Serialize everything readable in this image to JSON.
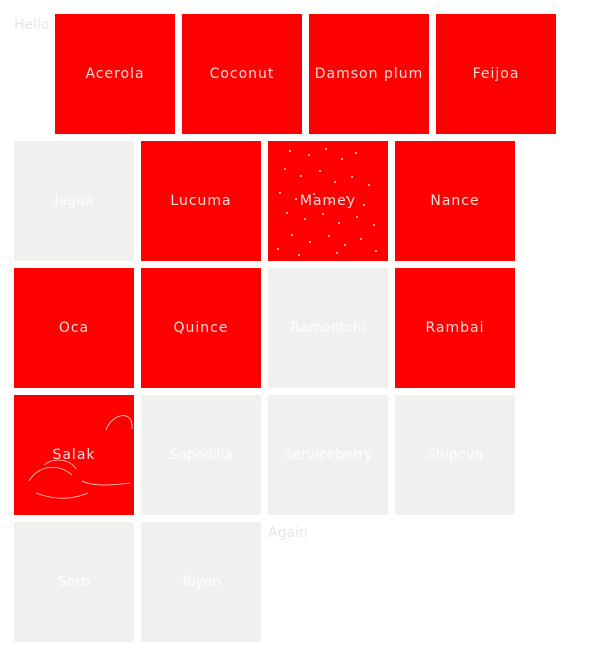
{
  "intro_text": "Hello",
  "outro_text": "Again",
  "colors": {
    "selected_tile": "#ff0000",
    "unselected_tile": "#f0f0f0",
    "label": "#ffffff",
    "page_text": "#e6e6e6"
  },
  "tiles": [
    {
      "label": "Acerola",
      "selected": true
    },
    {
      "label": "Coconut",
      "selected": true
    },
    {
      "label": "Damson plum",
      "selected": true
    },
    {
      "label": "Feijoa",
      "selected": true
    },
    {
      "label": "Jagua",
      "selected": false
    },
    {
      "label": "Lucuma",
      "selected": true
    },
    {
      "label": "Mamey",
      "selected": true
    },
    {
      "label": "Nance",
      "selected": true
    },
    {
      "label": "Oca",
      "selected": true
    },
    {
      "label": "Quince",
      "selected": true
    },
    {
      "label": "Ramontchi",
      "selected": false
    },
    {
      "label": "Rambai",
      "selected": true
    },
    {
      "label": "Salak",
      "selected": true
    },
    {
      "label": "Sapodilla",
      "selected": false
    },
    {
      "label": "Serviceberry",
      "selected": false
    },
    {
      "label": "Shipova",
      "selected": false
    },
    {
      "label": "Sorb",
      "selected": false
    },
    {
      "label": "Toyon",
      "selected": false
    }
  ]
}
